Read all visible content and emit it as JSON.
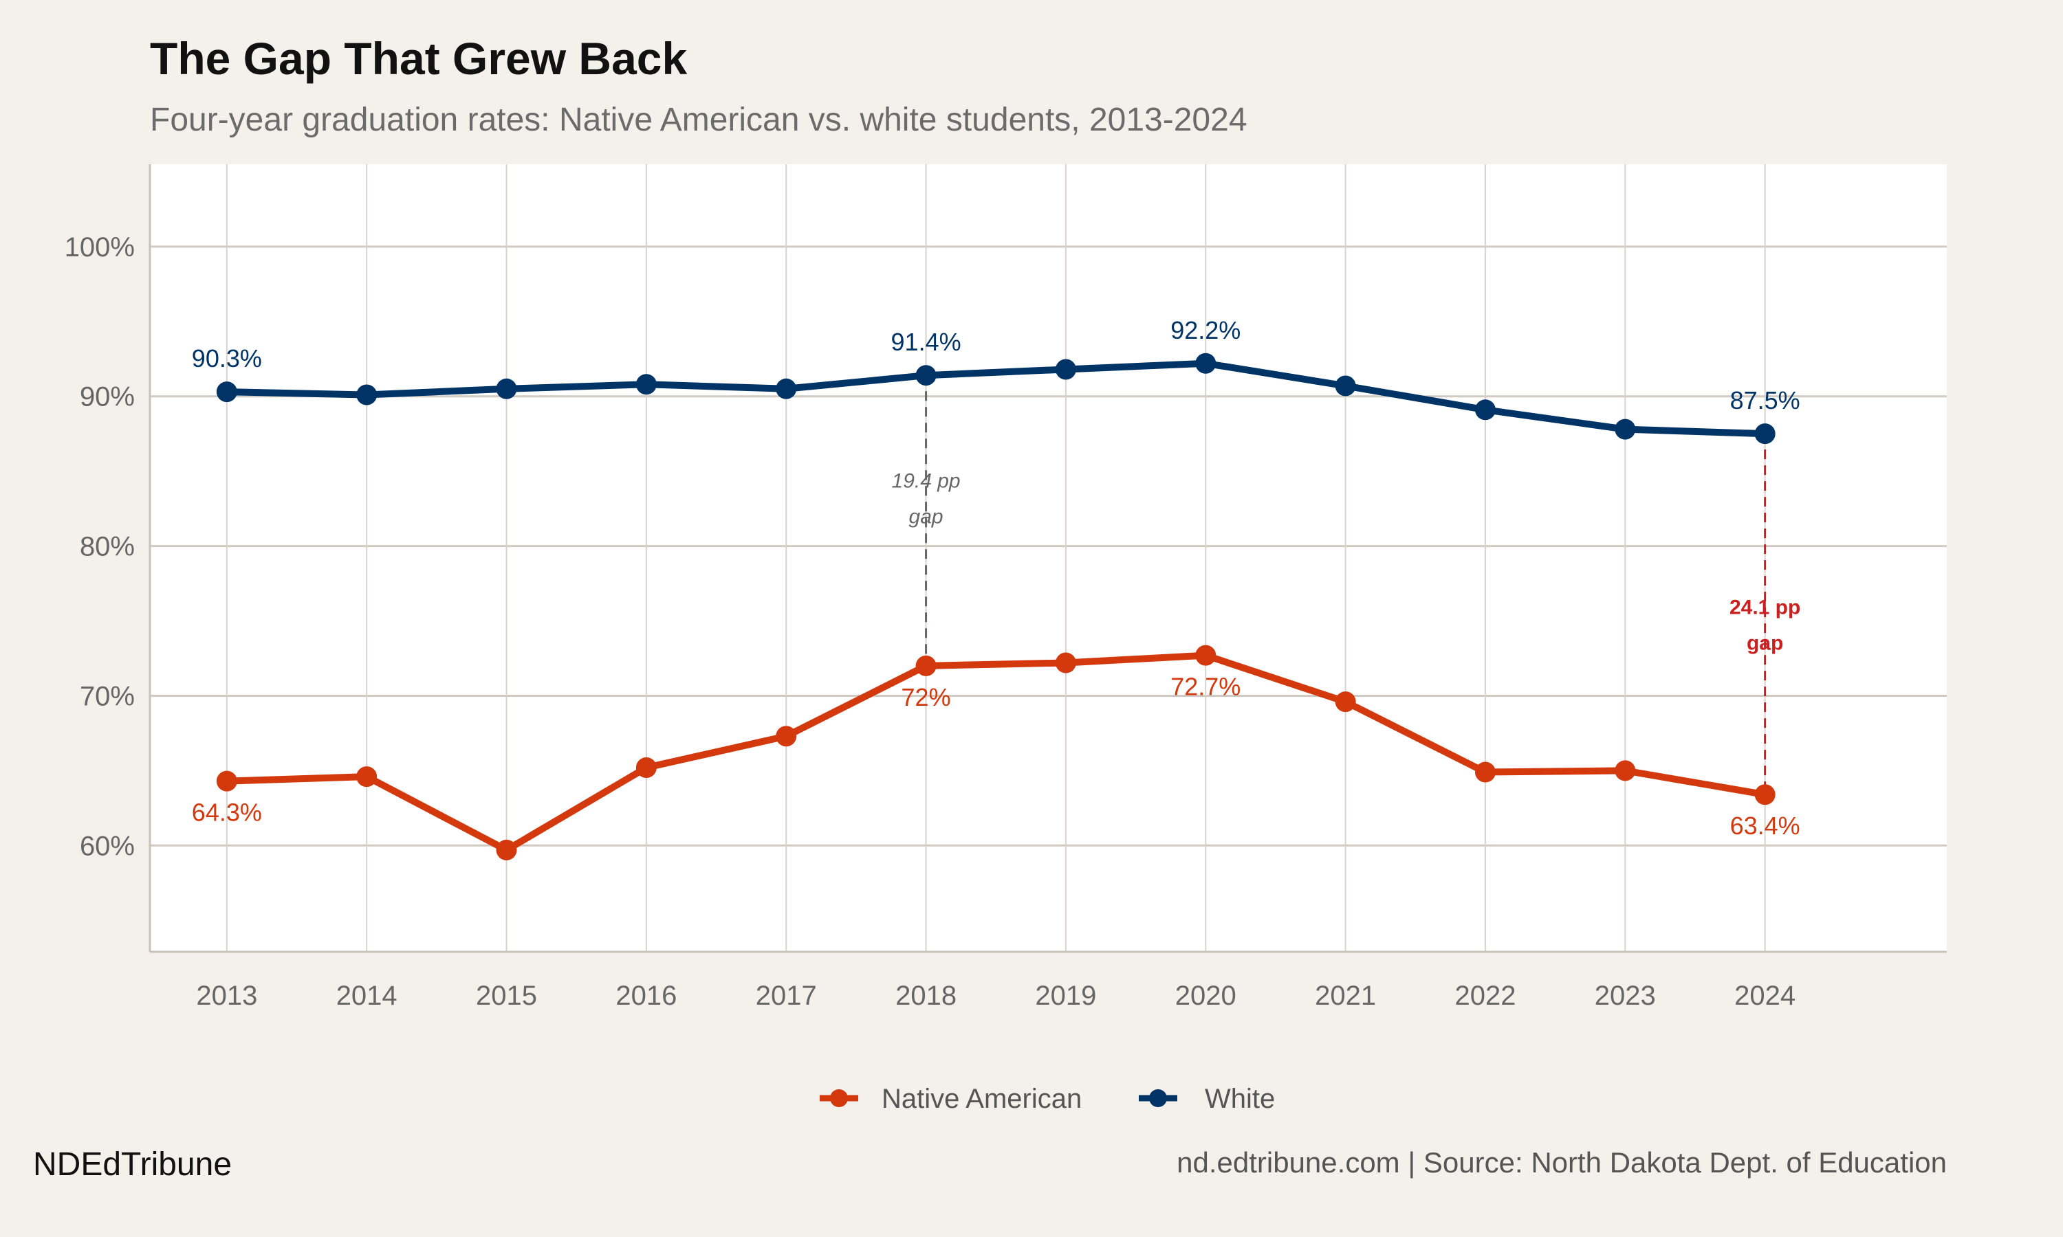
{
  "header": {
    "title": "The Gap That Grew Back",
    "subtitle": "Four-year graduation rates: Native American vs. white students, 2013-2024"
  },
  "footer": {
    "brand": "NDEdTribune",
    "source": "nd.edtribune.com | Source: North Dakota Dept. of Education"
  },
  "chart_data": {
    "type": "line",
    "title": "The Gap That Grew Back",
    "subtitle": "Four-year graduation rates: Native American vs. white students, 2013-2024",
    "xlabel": "",
    "ylabel": "",
    "x": [
      2013,
      2014,
      2015,
      2016,
      2017,
      2018,
      2019,
      2020,
      2021,
      2022,
      2023,
      2024
    ],
    "x_tick_labels": [
      "2013",
      "2014",
      "2015",
      "2016",
      "2017",
      "2018",
      "2019",
      "2020",
      "2021",
      "2022",
      "2023",
      "2024"
    ],
    "y_ticks": [
      60,
      70,
      80,
      90,
      100
    ],
    "y_tick_labels": [
      "60%",
      "70%",
      "80%",
      "90%",
      "100%"
    ],
    "xlim": [
      2012.45,
      2025.3
    ],
    "ylim": [
      52.9,
      105.5
    ],
    "grid": true,
    "legend_position": "bottom",
    "series": [
      {
        "name": "Native American",
        "color": "#d4380d",
        "values": [
          64.3,
          64.6,
          59.7,
          65.2,
          67.3,
          72.0,
          72.2,
          72.7,
          69.6,
          64.9,
          65.0,
          63.4
        ],
        "labels": {
          "2013": "64.3%",
          "2018": "72%",
          "2020": "72.7%",
          "2024": "63.4%"
        }
      },
      {
        "name": "White",
        "color": "#003366",
        "values": [
          90.3,
          90.1,
          90.5,
          90.8,
          90.5,
          91.4,
          91.8,
          92.2,
          90.7,
          89.1,
          87.8,
          87.5
        ],
        "labels": {
          "2013": "90.3%",
          "2018": "91.4%",
          "2020": "92.2%",
          "2024": "87.5%"
        }
      }
    ],
    "annotations": [
      {
        "x": 2018,
        "from": 72.0,
        "to": 91.4,
        "line1": "19.4 pp",
        "line2": "gap",
        "color": "#666666"
      },
      {
        "x": 2024,
        "from": 63.4,
        "to": 87.5,
        "line1": "24.1 pp",
        "line2": "gap",
        "color": "#cc1f1f"
      }
    ]
  }
}
